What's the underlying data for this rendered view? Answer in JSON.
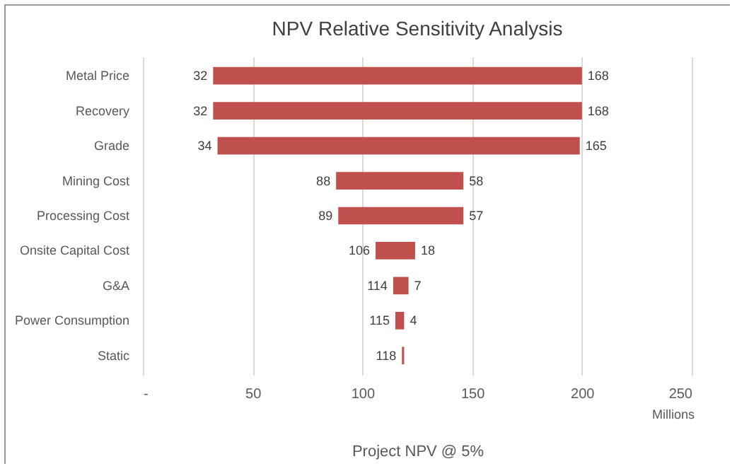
{
  "chart_data": {
    "type": "bar",
    "orientation": "horizontal",
    "title": "NPV Relative Sensitivity Analysis",
    "xlabel": "Project NPV @ 5%",
    "categories": [
      "Metal Price",
      "Recovery",
      "Grade",
      "Mining Cost",
      "Processing Cost",
      "Onsite Capital Cost",
      "G&A",
      "Power Consumption",
      "Static"
    ],
    "base": [
      32,
      32,
      34,
      88,
      89,
      106,
      114,
      115,
      118
    ],
    "values": [
      168,
      168,
      165,
      58,
      57,
      18,
      7,
      4,
      1
    ],
    "value_labels": [
      "168",
      "168",
      "165",
      "58",
      "57",
      "18",
      "7",
      "4",
      null
    ],
    "color": "#c0504d",
    "xlim": [
      0,
      250
    ],
    "xticks": [
      {
        "value": 0,
        "label": "-"
      },
      50,
      100,
      150,
      200,
      250
    ],
    "grid": "x",
    "annotations": [
      {
        "text": "32",
        "x": 32,
        "y": "Metal Price"
      },
      {
        "text": "32",
        "x": 32,
        "y": "Recovery"
      },
      {
        "text": "34",
        "x": 34,
        "y": "Grade"
      },
      {
        "text": "88",
        "x": 88,
        "y": "Mining Cost"
      },
      {
        "text": "89",
        "x": 89,
        "y": "Processing Cost"
      },
      {
        "text": "106",
        "x": 106,
        "y": "Onsite Capital Cost"
      },
      {
        "text": "114",
        "x": 114,
        "y": "G&A"
      },
      {
        "text": "115",
        "x": 115,
        "y": "Power Consumption"
      },
      {
        "text": "118",
        "x": 118,
        "y": "Static"
      },
      "Millions"
    ]
  }
}
